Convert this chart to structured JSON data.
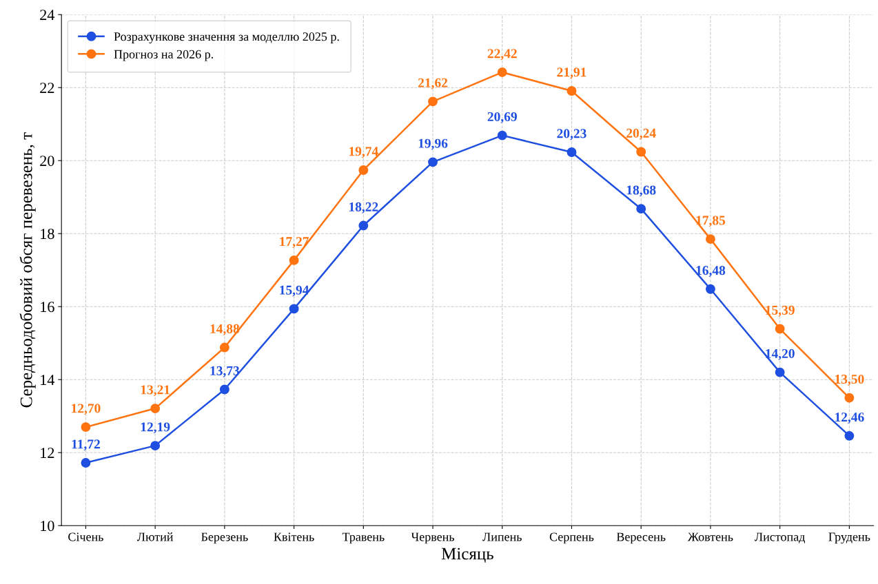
{
  "chart_data": {
    "type": "line",
    "xlabel": "Місяць",
    "ylabel": "Середньодобовий обсяг перевезень, т",
    "categories": [
      "Січень",
      "Лютий",
      "Березень",
      "Квітень",
      "Травень",
      "Червень",
      "Липень",
      "Серпень",
      "Вересень",
      "Жовтень",
      "Листопад",
      "Грудень"
    ],
    "series": [
      {
        "name": "Розрахункове значення за моделлю 2025 р.",
        "color": "#1f4fe0",
        "values": [
          11.72,
          12.19,
          13.73,
          15.94,
          18.22,
          19.96,
          20.69,
          20.23,
          18.68,
          16.48,
          14.2,
          12.46
        ],
        "value_labels": [
          "11,72",
          "12,19",
          "13,73",
          "15,94",
          "18,22",
          "19,96",
          "20,69",
          "20,23",
          "18,68",
          "16,48",
          "14,20",
          "12,46"
        ]
      },
      {
        "name": "Прогноз на 2026 р.",
        "color": "#ff7410",
        "values": [
          12.7,
          13.21,
          14.88,
          17.27,
          19.74,
          21.62,
          22.42,
          21.91,
          20.24,
          17.85,
          15.39,
          13.5
        ],
        "value_labels": [
          "12,70",
          "13,21",
          "14,88",
          "17,27",
          "19,74",
          "21,62",
          "22,42",
          "21,91",
          "20,24",
          "17,85",
          "15,39",
          "13,50"
        ]
      }
    ],
    "ylim": [
      10,
      24
    ],
    "yticks": [
      10,
      12,
      14,
      16,
      18,
      20,
      22,
      24
    ],
    "grid": true,
    "legend": "top left",
    "marker": "circle",
    "line_style": "solid"
  }
}
